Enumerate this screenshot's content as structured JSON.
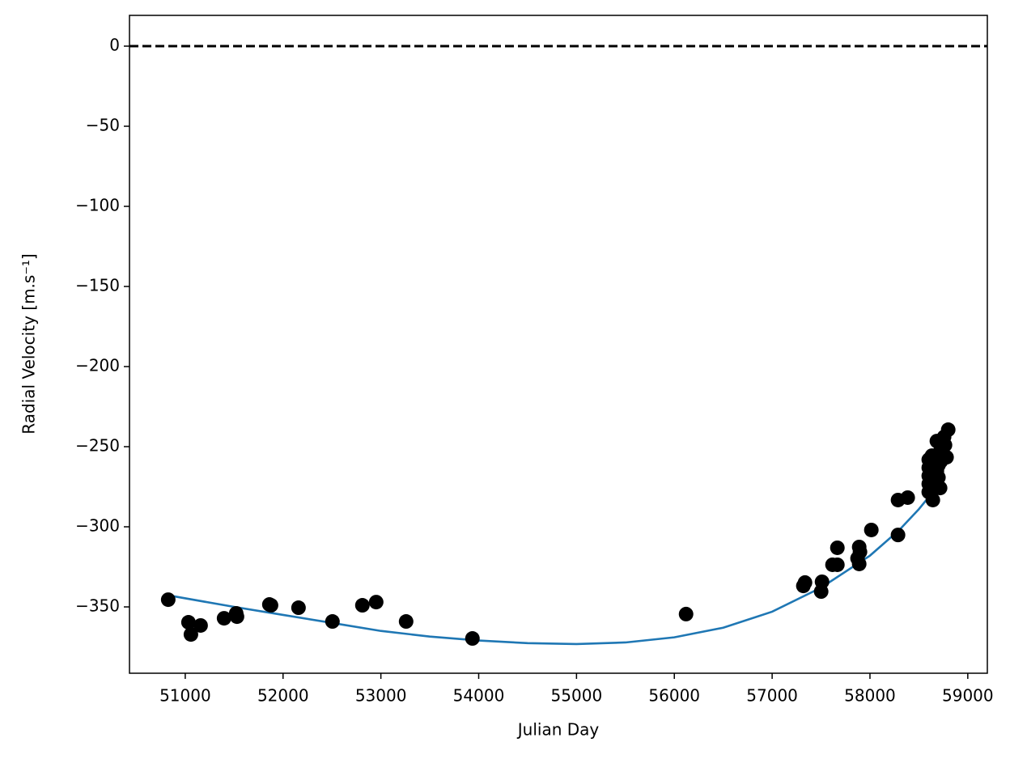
{
  "chart_data": {
    "type": "scatter",
    "x_label": "Julian Day",
    "y_label": "Radial Velocity [m.s⁻¹]",
    "xlim": [
      50430,
      59200
    ],
    "ylim": [
      -391.4,
      19.2
    ],
    "xticks": [
      51000,
      52000,
      53000,
      54000,
      55000,
      56000,
      57000,
      58000,
      59000
    ],
    "yticks": [
      {
        "value": -350,
        "label": "−350"
      },
      {
        "value": -300,
        "label": "−300"
      },
      {
        "value": -250,
        "label": "−250"
      },
      {
        "value": -200,
        "label": "−200"
      },
      {
        "value": -150,
        "label": "−150"
      },
      {
        "value": -100,
        "label": "−100"
      },
      {
        "value": -50,
        "label": "−50"
      },
      0
    ],
    "hlines": [
      {
        "value": 0,
        "color": "#000000",
        "dashed": true
      }
    ],
    "series": [
      {
        "type": "line",
        "color": "#1f77b4",
        "x": [
          50884,
          51500,
          52000,
          52500,
          53000,
          53500,
          54000,
          54500,
          55000,
          55500,
          56000,
          56500,
          57000,
          57500,
          58000,
          58300,
          58500,
          58700,
          58750
        ],
        "values": [
          -343.4,
          -350,
          -355,
          -360,
          -365,
          -368.5,
          -371,
          -372.6,
          -373.2,
          -372.2,
          -369,
          -363,
          -353,
          -338,
          -318,
          -302,
          -289,
          -274,
          -262
        ]
      },
      {
        "type": "scatter",
        "color": "#000000",
        "x": [
          50826,
          51033,
          51058,
          51157,
          51397,
          51521,
          51529,
          51860,
          51877,
          52158,
          52505,
          52811,
          52952,
          53258,
          53936,
          56120,
          57319,
          57336,
          57501,
          57510,
          57617,
          57667,
          57667,
          57873,
          57890,
          57898,
          57890,
          58014,
          58287,
          58287,
          58386,
          58601,
          58601,
          58601,
          58601,
          58601,
          58634,
          58643,
          58659,
          58684,
          58700,
          58700,
          58725,
          58725,
          58742,
          58758,
          58767,
          58783,
          58800,
          58684,
          58717
        ],
        "values": [
          -345.5,
          -359.6,
          -367.2,
          -361.6,
          -357.1,
          -354.0,
          -356.1,
          -348.5,
          -349.0,
          -350.5,
          -359.1,
          -349.0,
          -347.0,
          -359.1,
          -369.7,
          -354.5,
          -336.9,
          -334.8,
          -340.4,
          -334.3,
          -323.7,
          -323.7,
          -313.1,
          -319.7,
          -312.6,
          -315.7,
          -323.2,
          -302.0,
          -283.3,
          -305.1,
          -281.8,
          -258.1,
          -263.1,
          -268.2,
          -273.2,
          -278.3,
          -255.6,
          -283.3,
          -271.7,
          -246.5,
          -261.6,
          -269.2,
          -251.5,
          -259.1,
          -254.0,
          -243.9,
          -249.0,
          -256.6,
          -239.4,
          -265.2,
          -275.8
        ]
      }
    ]
  }
}
